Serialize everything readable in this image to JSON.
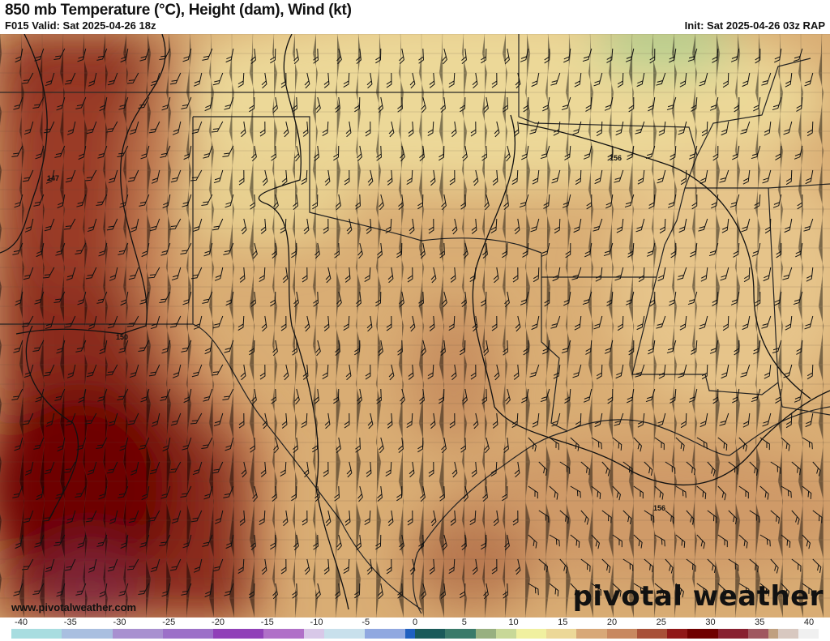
{
  "header": {
    "title": "850 mb Temperature (°C), Height (dam), Wind (kt)",
    "valid": "F015 Valid: Sat 2025-04-26 18z",
    "init": "Init: Sat 2025-04-26 03z RAP"
  },
  "map": {
    "contour_labels": [
      "147",
      "150",
      "156",
      "156"
    ],
    "url": "www.pivotalweather.com",
    "logo": "pivotal weather"
  },
  "colorbar": {
    "labels": [
      "-40",
      "-35",
      "-30",
      "-25",
      "-20",
      "-15",
      "-10",
      "-5",
      "0",
      "5",
      "10",
      "15",
      "20",
      "25",
      "30",
      "35",
      "40"
    ],
    "range": [
      -40,
      40
    ],
    "color_stops": [
      [
        -40,
        "#a8dde0"
      ],
      [
        -35,
        "#a9bfe0"
      ],
      [
        -30,
        "#a890d0"
      ],
      [
        -25,
        "#9c70c8"
      ],
      [
        -20,
        "#9040b8"
      ],
      [
        -15,
        "#b070c8"
      ],
      [
        -11,
        "#d8c8e8"
      ],
      [
        -9,
        "#c8e0ec"
      ],
      [
        -5,
        "#90a8e0"
      ],
      [
        -1,
        "#2060c0"
      ],
      [
        0,
        "#1a5a5a"
      ],
      [
        3,
        "#3a7a6a"
      ],
      [
        6,
        "#98b080"
      ],
      [
        8,
        "#c8d898"
      ],
      [
        10,
        "#f0f0a0"
      ],
      [
        13,
        "#ecd898"
      ],
      [
        16,
        "#d8a878"
      ],
      [
        19,
        "#c88860"
      ],
      [
        22,
        "#a85038"
      ],
      [
        25,
        "#901818"
      ],
      [
        27,
        "#700000"
      ],
      [
        30,
        "#882030"
      ],
      [
        33,
        "#a05860"
      ],
      [
        35,
        "#c0a080"
      ],
      [
        36,
        "#d8c8c0"
      ],
      [
        38,
        "#f0f0f0"
      ],
      [
        40,
        "#c0b0b0"
      ]
    ]
  }
}
